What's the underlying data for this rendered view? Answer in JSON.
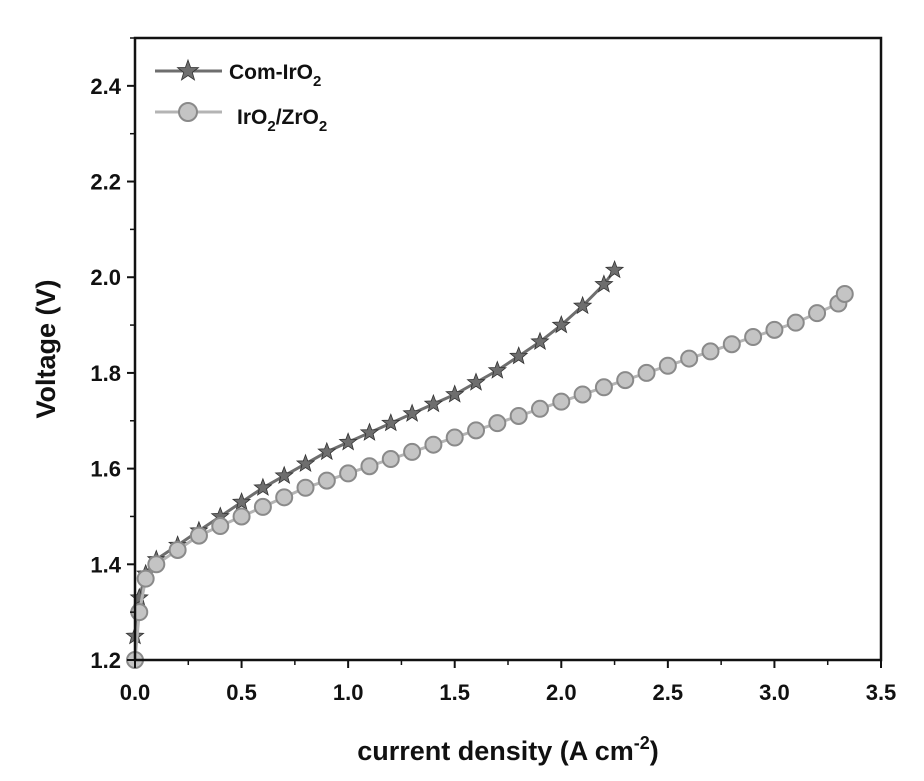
{
  "chart_data": {
    "type": "line",
    "title": "",
    "xlabel": "current density (A cm-2)",
    "xlabel_parts": {
      "main": "current density (A cm",
      "sup": "-2",
      "close": ")"
    },
    "ylabel": "Voltage (V)",
    "xlim": [
      0.0,
      3.5
    ],
    "ylim": [
      1.2,
      2.5
    ],
    "x_ticks": [
      "0.0",
      "0.5",
      "1.0",
      "1.5",
      "2.0",
      "2.5",
      "3.0",
      "3.5"
    ],
    "y_ticks": [
      "1.2",
      "1.4",
      "1.6",
      "1.8",
      "2.0",
      "2.2",
      "2.4"
    ],
    "grid": false,
    "legend_position": "top-left",
    "series": [
      {
        "name": "Com-IrO2",
        "label_main": "Com-IrO",
        "label_sub": "2",
        "marker": "star",
        "color": "#6e6e6e",
        "x": [
          0.0,
          0.02,
          0.05,
          0.1,
          0.2,
          0.3,
          0.4,
          0.5,
          0.6,
          0.7,
          0.8,
          0.9,
          1.0,
          1.1,
          1.2,
          1.3,
          1.4,
          1.5,
          1.6,
          1.7,
          1.8,
          1.9,
          2.0,
          2.1,
          2.2,
          2.25
        ],
        "y": [
          1.25,
          1.33,
          1.38,
          1.41,
          1.44,
          1.47,
          1.5,
          1.53,
          1.56,
          1.585,
          1.61,
          1.635,
          1.655,
          1.675,
          1.695,
          1.715,
          1.735,
          1.755,
          1.78,
          1.805,
          1.835,
          1.865,
          1.9,
          1.94,
          1.985,
          2.015
        ]
      },
      {
        "name": "IrO2/ZrO2",
        "label_main": "IrO",
        "label_sub": "2",
        "label_mid": "/ZrO",
        "label_sub2": "2",
        "marker": "circle",
        "color": "#b4b4b4",
        "x": [
          0.0,
          0.02,
          0.05,
          0.1,
          0.2,
          0.3,
          0.4,
          0.5,
          0.6,
          0.7,
          0.8,
          0.9,
          1.0,
          1.1,
          1.2,
          1.3,
          1.4,
          1.5,
          1.6,
          1.7,
          1.8,
          1.9,
          2.0,
          2.1,
          2.2,
          2.3,
          2.4,
          2.5,
          2.6,
          2.7,
          2.8,
          2.9,
          3.0,
          3.1,
          3.2,
          3.3,
          3.33
        ],
        "y": [
          1.2,
          1.3,
          1.37,
          1.4,
          1.43,
          1.46,
          1.48,
          1.5,
          1.52,
          1.54,
          1.56,
          1.575,
          1.59,
          1.605,
          1.62,
          1.635,
          1.65,
          1.665,
          1.68,
          1.695,
          1.71,
          1.725,
          1.74,
          1.755,
          1.77,
          1.785,
          1.8,
          1.815,
          1.83,
          1.845,
          1.86,
          1.875,
          1.89,
          1.905,
          1.925,
          1.945,
          1.965
        ]
      }
    ]
  }
}
